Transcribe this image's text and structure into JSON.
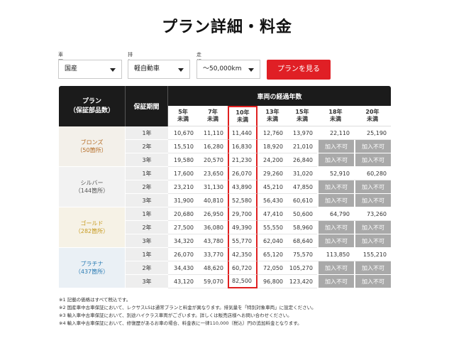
{
  "title": "プラン詳細・料金",
  "filters": [
    {
      "label": "車両区分",
      "value": "国産"
    },
    {
      "label": "排気量",
      "value": "軽自動車"
    },
    {
      "label": "走行距離",
      "value": "～50,000km"
    }
  ],
  "search_button": "プランを見る",
  "table": {
    "plan_header": [
      "プラン",
      "（保証部品数）"
    ],
    "period_header": "保証期間",
    "years_header": "車両の経過年数",
    "age_columns": [
      [
        "5年",
        "未満"
      ],
      [
        "7年",
        "未満"
      ],
      [
        "10年",
        "未満"
      ],
      [
        "13年",
        "未満"
      ],
      [
        "15年",
        "未満"
      ],
      [
        "18年",
        "未満"
      ],
      [
        "20年",
        "未満"
      ]
    ],
    "highlighted_column": 2,
    "plans": [
      {
        "name": "ブロンズ",
        "parts": "（50箇所）",
        "accent": "#b46a22",
        "rows": [
          {
            "period": "1年",
            "values": [
              "10,670",
              "11,110",
              "11,440",
              "12,760",
              "13,970",
              "22,110",
              "25,190"
            ]
          },
          {
            "period": "2年",
            "values": [
              "15,510",
              "16,280",
              "16,830",
              "18,920",
              "21,010",
              "加入不可",
              "加入不可"
            ]
          },
          {
            "period": "3年",
            "values": [
              "19,580",
              "20,570",
              "21,230",
              "24,200",
              "26,840",
              "加入不可",
              "加入不可"
            ]
          }
        ]
      },
      {
        "name": "シルバー",
        "parts": "（144箇所）",
        "accent": "#555555",
        "rows": [
          {
            "period": "1年",
            "values": [
              "17,600",
              "23,650",
              "26,070",
              "29,260",
              "31,020",
              "52,910",
              "60,280"
            ]
          },
          {
            "period": "2年",
            "values": [
              "23,210",
              "31,130",
              "43,890",
              "45,210",
              "47,850",
              "加入不可",
              "加入不可"
            ]
          },
          {
            "period": "3年",
            "values": [
              "31,900",
              "40,810",
              "52,580",
              "56,430",
              "60,610",
              "加入不可",
              "加入不可"
            ]
          }
        ]
      },
      {
        "name": "ゴールド",
        "parts": "（282箇所）",
        "accent": "#c79a1f",
        "rows": [
          {
            "period": "1年",
            "values": [
              "20,680",
              "26,950",
              "29,700",
              "47,410",
              "50,600",
              "64,790",
              "73,260"
            ]
          },
          {
            "period": "2年",
            "values": [
              "27,500",
              "36,080",
              "49,390",
              "55,550",
              "58,960",
              "加入不可",
              "加入不可"
            ]
          },
          {
            "period": "3年",
            "values": [
              "34,320",
              "43,780",
              "55,770",
              "62,040",
              "68,640",
              "加入不可",
              "加入不可"
            ]
          }
        ]
      },
      {
        "name": "プラチナ",
        "parts": "（437箇所）",
        "accent": "#2a7bb3",
        "rows": [
          {
            "period": "1年",
            "values": [
              "26,070",
              "33,770",
              "42,350",
              "65,120",
              "75,570",
              "113,850",
              "155,210"
            ]
          },
          {
            "period": "2年",
            "values": [
              "34,430",
              "48,620",
              "60,720",
              "72,050",
              "105,270",
              "加入不可",
              "加入不可"
            ]
          },
          {
            "period": "3年",
            "values": [
              "43,120",
              "59,070",
              "82,500",
              "96,800",
              "123,420",
              "加入不可",
              "加入不可"
            ]
          }
        ]
      }
    ]
  },
  "notes": [
    "※1 記載の価格はすべて税込です。",
    "※2 国産車中古車保証において、レクサスLSは通常プランと料金が異なります。排気量を「特別対象車両」に設定ください。",
    "※3 輸入車中古車保証において、別途ハイクラス車両がございます。詳しくは販売店様へお問い合わせください。",
    "※4 輸入車中古車保証において、修復歴があるお車の場合、料金表に一律110,000（税込）円の追加料金となります。"
  ]
}
